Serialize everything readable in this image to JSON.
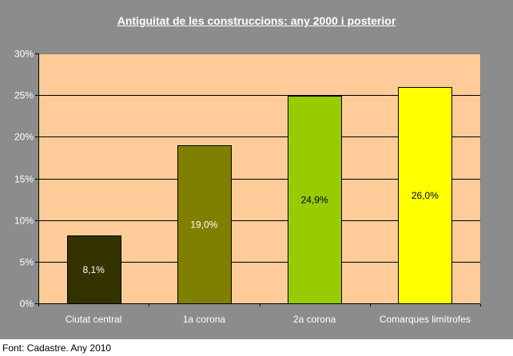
{
  "chart_data": {
    "type": "bar",
    "title": "Antiguitat de les construccions: any 2000 i posterior",
    "categories": [
      "Ciutat central",
      "1a corona",
      "2a corona",
      "Comarques limítrofes"
    ],
    "values": [
      8.1,
      19.0,
      24.9,
      26.0
    ],
    "data_labels": [
      "8,1%",
      "19,0%",
      "24,9%",
      "26,0%"
    ],
    "bar_colors": [
      "#333300",
      "#808000",
      "#99cc00",
      "#ffff00"
    ],
    "label_colors": [
      "#ffffff",
      "#ffffff",
      "#000000",
      "#000000"
    ],
    "yticks": [
      "0%",
      "5%",
      "10%",
      "15%",
      "20%",
      "25%",
      "30%"
    ],
    "ylim": [
      0,
      30
    ],
    "xlabel": "",
    "ylabel": "",
    "grid": true,
    "legend": "none",
    "plot_background": "#ffcc99",
    "frame_background": "#8c8c8c"
  },
  "source_note": "Font: Cadastre. Any 2010"
}
